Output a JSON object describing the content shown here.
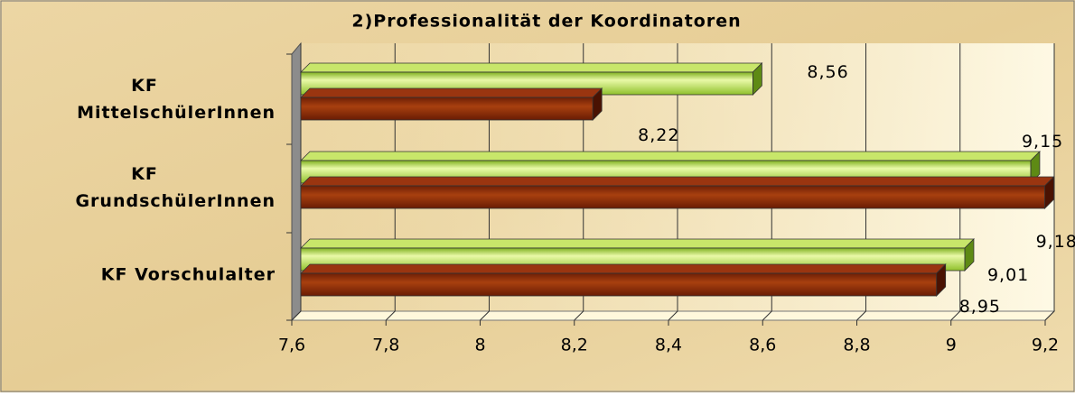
{
  "chart_data": {
    "type": "bar3d",
    "orientation": "horizontal",
    "title": "2)Professionalität der Koordinatoren",
    "categories": [
      "KF MittelschülerInnen",
      "KF GrundschülerInnen",
      "KF Vorschulalter"
    ],
    "series": [
      {
        "color": "#9ccc2c",
        "values": [
          8.56,
          9.15,
          9.01
        ],
        "value_labels": [
          "8,56",
          "9,15",
          "9,01"
        ]
      },
      {
        "color": "#8a2a08",
        "values": [
          8.22,
          9.18,
          8.95
        ],
        "value_labels": [
          "8,22",
          "9,18",
          "8,95"
        ]
      }
    ],
    "xlim": [
      7.6,
      9.2
    ],
    "xticks": [
      {
        "value": 7.6,
        "label": "7,6"
      },
      {
        "value": 7.8,
        "label": "7,8"
      },
      8,
      {
        "value": 8.2,
        "label": "8,2"
      },
      {
        "value": 8.4,
        "label": "8,4"
      },
      {
        "value": 8.6,
        "label": "8,6"
      },
      {
        "value": 8.8,
        "label": "8,8"
      },
      9,
      {
        "value": 9.2,
        "label": "9,2"
      }
    ],
    "grid": true
  }
}
